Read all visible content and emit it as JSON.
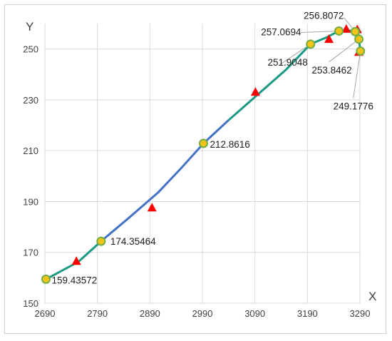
{
  "chart_data": {
    "type": "line",
    "xlabel": "X",
    "ylabel": "Y",
    "xlim": [
      2690,
      3290
    ],
    "ylim": [
      150,
      260
    ],
    "xticks": [
      2690,
      2790,
      2890,
      2990,
      3090,
      3190,
      3290
    ],
    "yticks": [
      150,
      170,
      190,
      210,
      230,
      250
    ],
    "grid": true,
    "legend": "none",
    "colors": {
      "blue_segment": "#4472c4",
      "teal_segment": "#1a9a82",
      "circle_fill": "#f2c418",
      "circle_stroke": "#70ad47",
      "triangle": "#ff0000",
      "grid": "#d9d9d9",
      "leader": "#a6a6a6"
    },
    "curve_points": [
      {
        "x": 2692,
        "y": 159.43572
      },
      {
        "x": 2754,
        "y": 166.3
      },
      {
        "x": 2797,
        "y": 174.35464
      },
      {
        "x": 2850,
        "y": 183.6
      },
      {
        "x": 2905,
        "y": 193.4
      },
      {
        "x": 2950,
        "y": 203.2
      },
      {
        "x": 2992,
        "y": 212.8616
      },
      {
        "x": 3040,
        "y": 222.0
      },
      {
        "x": 3095,
        "y": 232.0
      },
      {
        "x": 3150,
        "y": 242.0
      },
      {
        "x": 3196,
        "y": 251.9048
      },
      {
        "x": 3227,
        "y": 254.6
      },
      {
        "x": 3250,
        "y": 257.0694
      },
      {
        "x": 3268,
        "y": 257.3
      },
      {
        "x": 3281,
        "y": 256.8072
      },
      {
        "x": 3288,
        "y": 253.8462
      },
      {
        "x": 3291,
        "y": 249.1776
      }
    ],
    "circle_points": [
      {
        "x": 2692,
        "y": 159.43572,
        "label": "159.43572"
      },
      {
        "x": 2797,
        "y": 174.35464,
        "label": "174.35464"
      },
      {
        "x": 2992,
        "y": 212.8616,
        "label": "212.8616"
      },
      {
        "x": 3196,
        "y": 251.9048,
        "label": "251.9048"
      },
      {
        "x": 3250,
        "y": 257.0694,
        "label": "257.0694"
      },
      {
        "x": 3281,
        "y": 256.8072,
        "label": "256.8072"
      },
      {
        "x": 3288,
        "y": 253.8462,
        "label": "253.8462"
      },
      {
        "x": 3291,
        "y": 249.1776,
        "label": "249.1776"
      }
    ],
    "triangle_points": [
      {
        "x": 2750,
        "y": 166.5
      },
      {
        "x": 2894,
        "y": 187.5
      },
      {
        "x": 3091,
        "y": 233.0
      },
      {
        "x": 3231,
        "y": 253.8
      },
      {
        "x": 3264,
        "y": 257.8
      },
      {
        "x": 3285,
        "y": 257.6
      },
      {
        "x": 3288,
        "y": 248.7
      }
    ]
  }
}
